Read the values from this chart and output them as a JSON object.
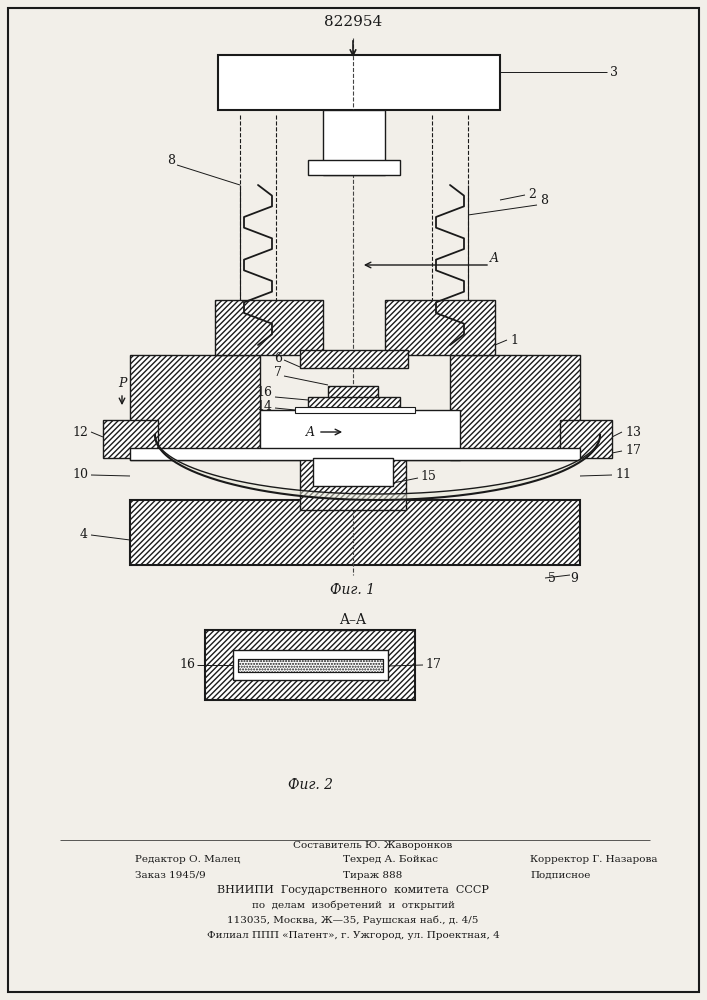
{
  "patent_number": "822954",
  "fig1_label": "Фиг. 1",
  "fig2_label": "Фиг. 2",
  "section_label": "A–A",
  "bg_color": "#f2efe9",
  "line_color": "#1a1a1a",
  "footer_col1_line1": "Редактор О. Малец",
  "footer_col1_line2": "Заказ 1945/9",
  "footer_col2_line0": "Составитель Ю. Жаворонков",
  "footer_col2_line1": "Техред А. Бойкас",
  "footer_col2_line2": "Тираж 888",
  "footer_col3_line1": "Корректор Г. Назарова",
  "footer_col3_line2": "Подписное",
  "footer_vniip1": "ВНИИПИ  Государственного  комитета  СССР",
  "footer_vniip2": "по  делам  изобретений  и  открытий",
  "footer_addr1": "113035, Москва, Ж—35, Раушская наб., д. 4/5",
  "footer_addr2": "Филиал ППП «Патент», г. Ужгород, ул. Проектная, 4"
}
